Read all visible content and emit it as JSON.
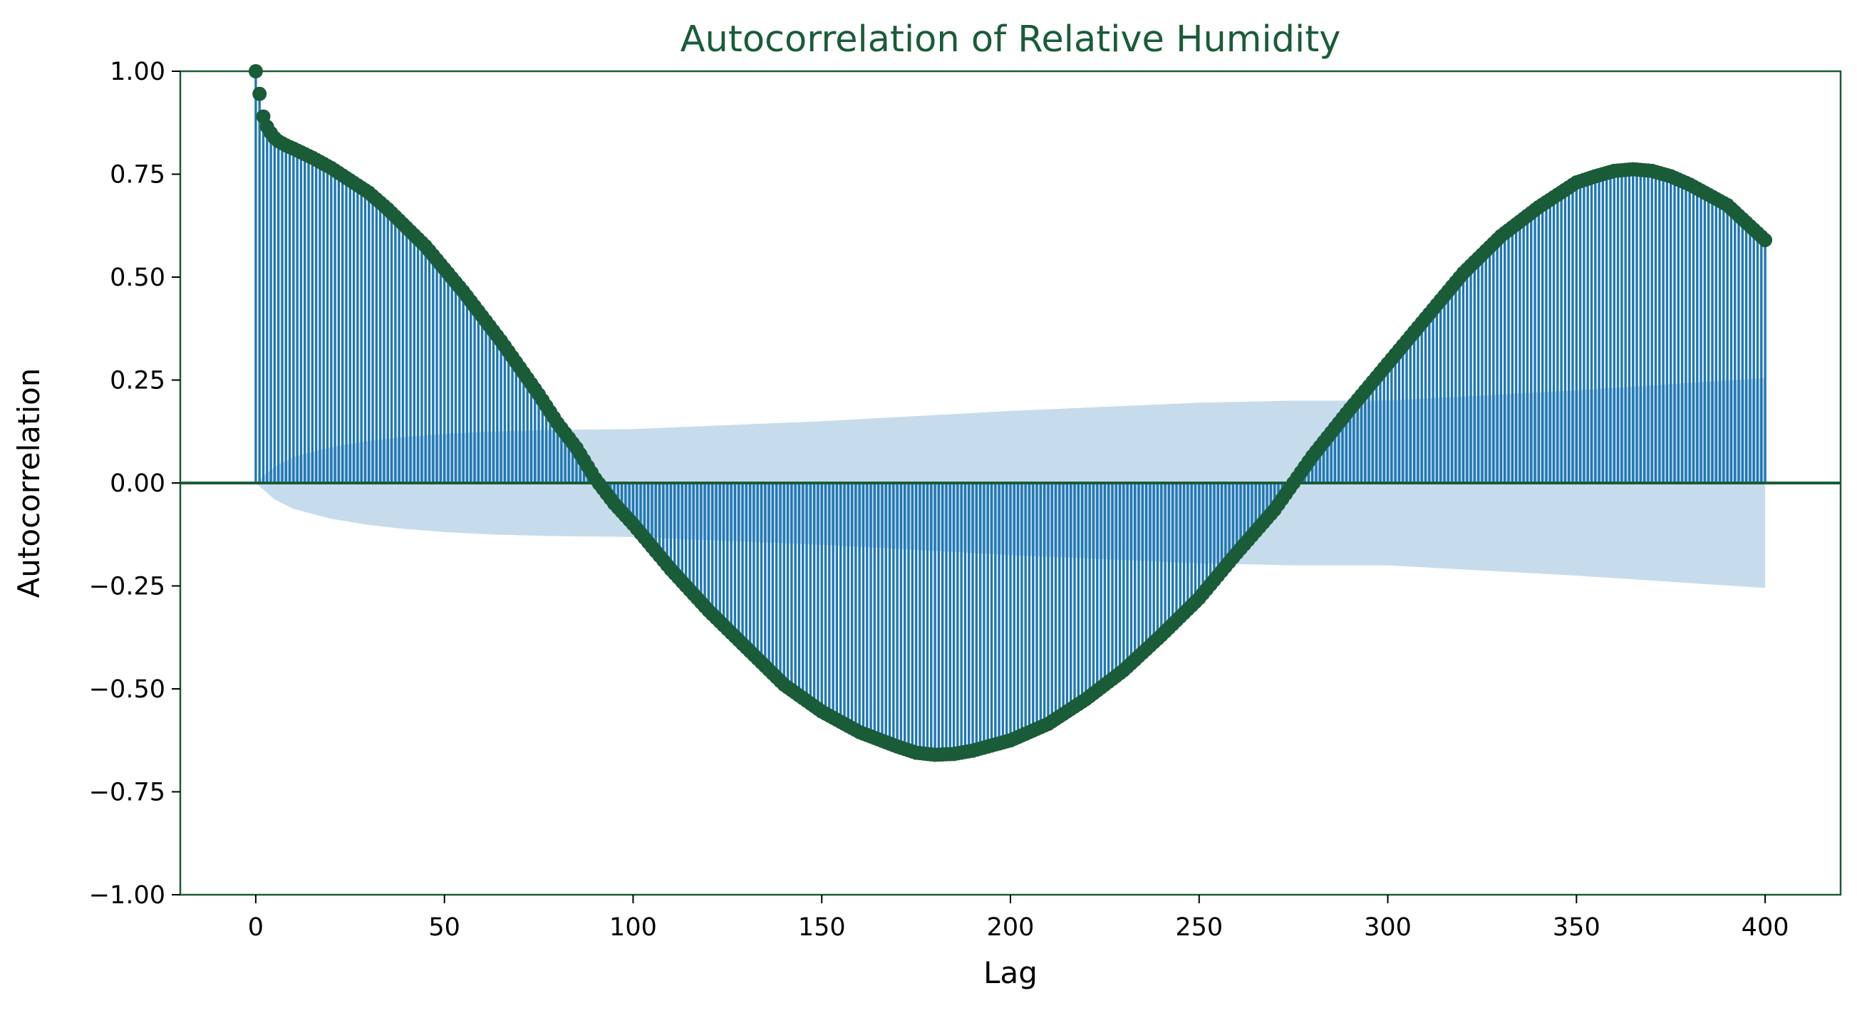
{
  "chart_data": {
    "type": "line",
    "title": "Autocorrelation of Relative Humidity",
    "xlabel": "Lag",
    "ylabel": "Autocorrelation",
    "xlim": [
      -20,
      420
    ],
    "ylim": [
      -1.0,
      1.0
    ],
    "xticks": [
      0,
      50,
      100,
      150,
      200,
      250,
      300,
      350,
      400
    ],
    "xtick_labels": [
      "0",
      "50",
      "100",
      "150",
      "200",
      "250",
      "300",
      "350",
      "400"
    ],
    "yticks": [
      1.0,
      0.75,
      0.5,
      0.25,
      0.0,
      -0.25,
      -0.5,
      -0.75,
      -1.0
    ],
    "ytick_labels": [
      "1.00",
      "0.75",
      "0.50",
      "0.25",
      "0.00",
      "−0.25",
      "−0.50",
      "−0.75",
      "−1.00"
    ],
    "grid": false,
    "legend": "none",
    "colors": {
      "title": "#1a5c38",
      "frame": "#1a5c38",
      "marker": "#1a5c38",
      "zero_line": "#1a5c38",
      "stem_fill": "#1f77b4",
      "confidence_band": "#c6dcec"
    },
    "acf_anchor_points": {
      "lag": [
        0,
        1,
        2,
        3,
        4,
        5,
        6,
        8,
        10,
        15,
        20,
        25,
        30,
        35,
        40,
        45,
        50,
        55,
        60,
        65,
        70,
        75,
        80,
        85,
        90,
        95,
        100,
        110,
        120,
        130,
        140,
        150,
        160,
        170,
        175,
        180,
        185,
        190,
        200,
        210,
        220,
        230,
        240,
        250,
        260,
        270,
        275,
        280,
        290,
        300,
        310,
        320,
        330,
        340,
        350,
        355,
        360,
        365,
        370,
        375,
        380,
        390,
        400
      ],
      "value": [
        1.0,
        0.945,
        0.89,
        0.865,
        0.85,
        0.838,
        0.83,
        0.82,
        0.812,
        0.79,
        0.765,
        0.735,
        0.705,
        0.665,
        0.62,
        0.575,
        0.52,
        0.465,
        0.405,
        0.345,
        0.28,
        0.215,
        0.145,
        0.085,
        0.01,
        -0.05,
        -0.1,
        -0.21,
        -0.31,
        -0.4,
        -0.49,
        -0.555,
        -0.605,
        -0.64,
        -0.655,
        -0.66,
        -0.658,
        -0.65,
        -0.625,
        -0.585,
        -0.525,
        -0.455,
        -0.37,
        -0.28,
        -0.17,
        -0.065,
        0.0,
        0.065,
        0.18,
        0.29,
        0.4,
        0.51,
        0.6,
        0.67,
        0.73,
        0.745,
        0.758,
        0.762,
        0.758,
        0.745,
        0.725,
        0.675,
        0.59
      ]
    },
    "confidence_band_anchor_points": {
      "lag": [
        0,
        5,
        10,
        20,
        30,
        40,
        50,
        60,
        70,
        80,
        90,
        100,
        150,
        200,
        250,
        275,
        300,
        350,
        400
      ],
      "upper": [
        0.0,
        0.04,
        0.063,
        0.087,
        0.102,
        0.112,
        0.119,
        0.124,
        0.127,
        0.129,
        0.13,
        0.131,
        0.15,
        0.175,
        0.195,
        0.2,
        0.2,
        0.225,
        0.255
      ],
      "lower": [
        0.0,
        -0.04,
        -0.063,
        -0.087,
        -0.102,
        -0.112,
        -0.119,
        -0.124,
        -0.127,
        -0.129,
        -0.13,
        -0.131,
        -0.15,
        -0.175,
        -0.195,
        -0.2,
        -0.2,
        -0.225,
        -0.255
      ]
    }
  }
}
